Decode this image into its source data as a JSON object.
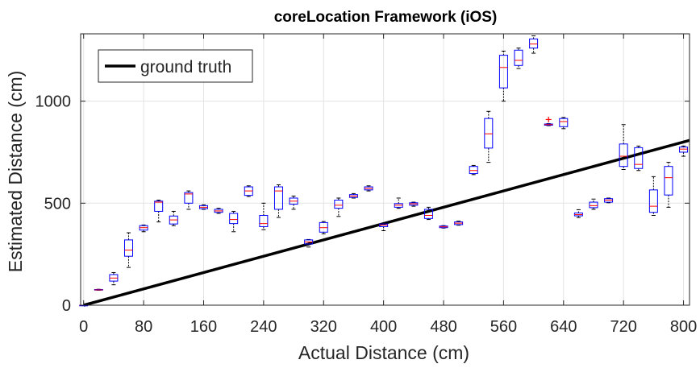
{
  "chart_data": {
    "type": "box",
    "title": "coreLocation Framework (iOS)",
    "xlabel": "Actual Distance (cm)",
    "ylabel": "Estimated Distance (cm)",
    "xlim": [
      -4,
      808
    ],
    "ylim": [
      0,
      1330
    ],
    "xticks": [
      0,
      80,
      160,
      240,
      320,
      400,
      480,
      560,
      640,
      720,
      800
    ],
    "yticks": [
      0,
      500,
      1000
    ],
    "grid": true,
    "legend": {
      "position": "top-left",
      "entries": [
        {
          "label": "ground truth",
          "color": "#000000"
        }
      ]
    },
    "reference_line": {
      "name": "ground truth",
      "x": [
        0,
        808
      ],
      "y": [
        0,
        808
      ]
    },
    "box_color": "#0000ff",
    "median_color": "#ff0000",
    "outlier_color": "#ff0000",
    "boxes": [
      {
        "x": 0,
        "wl": 0,
        "q1": 0,
        "med": 0,
        "q3": 0,
        "wh": 0
      },
      {
        "x": 20,
        "wl": 73,
        "q1": 74,
        "med": 75,
        "q3": 77,
        "wh": 78
      },
      {
        "x": 40,
        "wl": 100,
        "q1": 118,
        "med": 133,
        "q3": 150,
        "wh": 160
      },
      {
        "x": 60,
        "wl": 185,
        "q1": 240,
        "med": 270,
        "q3": 320,
        "wh": 355
      },
      {
        "x": 80,
        "wl": 360,
        "q1": 368,
        "med": 380,
        "q3": 390,
        "wh": 393
      },
      {
        "x": 100,
        "wl": 408,
        "q1": 460,
        "med": 505,
        "q3": 510,
        "wh": 515
      },
      {
        "x": 120,
        "wl": 390,
        "q1": 398,
        "med": 418,
        "q3": 437,
        "wh": 460
      },
      {
        "x": 140,
        "wl": 470,
        "q1": 500,
        "med": 545,
        "q3": 552,
        "wh": 560
      },
      {
        "x": 160,
        "wl": 470,
        "q1": 473,
        "med": 480,
        "q3": 488,
        "wh": 492
      },
      {
        "x": 180,
        "wl": 450,
        "q1": 455,
        "med": 462,
        "q3": 470,
        "wh": 475
      },
      {
        "x": 200,
        "wl": 360,
        "q1": 400,
        "med": 420,
        "q3": 450,
        "wh": 460
      },
      {
        "x": 220,
        "wl": 533,
        "q1": 538,
        "med": 560,
        "q3": 580,
        "wh": 585
      },
      {
        "x": 240,
        "wl": 370,
        "q1": 385,
        "med": 400,
        "q3": 440,
        "wh": 500
      },
      {
        "x": 260,
        "wl": 430,
        "q1": 470,
        "med": 560,
        "q3": 580,
        "wh": 590
      },
      {
        "x": 280,
        "wl": 470,
        "q1": 495,
        "med": 510,
        "q3": 525,
        "wh": 535
      },
      {
        "x": 300,
        "wl": 285,
        "q1": 300,
        "med": 310,
        "q3": 320,
        "wh": 322
      },
      {
        "x": 320,
        "wl": 350,
        "q1": 358,
        "med": 380,
        "q3": 405,
        "wh": 410
      },
      {
        "x": 340,
        "wl": 435,
        "q1": 475,
        "med": 490,
        "q3": 515,
        "wh": 525
      },
      {
        "x": 360,
        "wl": 525,
        "q1": 528,
        "med": 535,
        "q3": 542,
        "wh": 547
      },
      {
        "x": 380,
        "wl": 560,
        "q1": 565,
        "med": 572,
        "q3": 580,
        "wh": 585
      },
      {
        "x": 400,
        "wl": 365,
        "q1": 385,
        "med": 393,
        "q3": 398,
        "wh": 402
      },
      {
        "x": 420,
        "wl": 475,
        "q1": 480,
        "med": 490,
        "q3": 498,
        "wh": 525
      },
      {
        "x": 440,
        "wl": 485,
        "q1": 490,
        "med": 497,
        "q3": 502,
        "wh": 505
      },
      {
        "x": 460,
        "wl": 420,
        "q1": 425,
        "med": 440,
        "q3": 470,
        "wh": 480
      },
      {
        "x": 480,
        "wl": 378,
        "q1": 380,
        "med": 384,
        "q3": 388,
        "wh": 390
      },
      {
        "x": 500,
        "wl": 392,
        "q1": 395,
        "med": 402,
        "q3": 408,
        "wh": 412
      },
      {
        "x": 520,
        "wl": 640,
        "q1": 645,
        "med": 660,
        "q3": 680,
        "wh": 685
      },
      {
        "x": 540,
        "wl": 700,
        "q1": 770,
        "med": 840,
        "q3": 915,
        "wh": 950
      },
      {
        "x": 560,
        "wl": 1000,
        "q1": 1065,
        "med": 1165,
        "q3": 1225,
        "wh": 1245
      },
      {
        "x": 580,
        "wl": 1160,
        "q1": 1175,
        "med": 1200,
        "q3": 1250,
        "wh": 1260
      },
      {
        "x": 600,
        "wl": 1235,
        "q1": 1260,
        "med": 1280,
        "q3": 1305,
        "wh": 1320
      },
      {
        "x": 620,
        "wl": 880,
        "q1": 882,
        "med": 885,
        "q3": 888,
        "wh": 890,
        "outliers": [
          910
        ]
      },
      {
        "x": 640,
        "wl": 865,
        "q1": 875,
        "med": 900,
        "q3": 915,
        "wh": 920
      },
      {
        "x": 660,
        "wl": 430,
        "q1": 438,
        "med": 444,
        "q3": 452,
        "wh": 468
      },
      {
        "x": 680,
        "wl": 470,
        "q1": 478,
        "med": 488,
        "q3": 505,
        "wh": 520
      },
      {
        "x": 700,
        "wl": 502,
        "q1": 505,
        "med": 515,
        "q3": 522,
        "wh": 525
      },
      {
        "x": 720,
        "wl": 665,
        "q1": 680,
        "med": 730,
        "q3": 790,
        "wh": 885
      },
      {
        "x": 740,
        "wl": 660,
        "q1": 670,
        "med": 690,
        "q3": 772,
        "wh": 780
      },
      {
        "x": 760,
        "wl": 440,
        "q1": 455,
        "med": 485,
        "q3": 565,
        "wh": 630
      },
      {
        "x": 780,
        "wl": 480,
        "q1": 540,
        "med": 625,
        "q3": 680,
        "wh": 700
      },
      {
        "x": 800,
        "wl": 730,
        "q1": 750,
        "med": 765,
        "q3": 775,
        "wh": 780
      }
    ]
  }
}
